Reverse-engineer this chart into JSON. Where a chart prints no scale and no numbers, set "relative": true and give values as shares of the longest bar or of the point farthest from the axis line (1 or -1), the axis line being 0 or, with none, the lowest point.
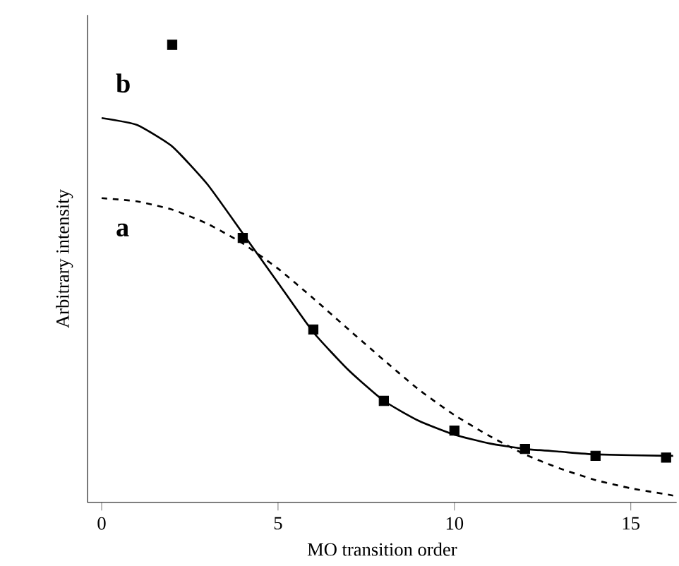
{
  "chart_data": {
    "type": "line",
    "xlabel": "MO transition order",
    "ylabel": "Arbitrary intensity",
    "relative": true,
    "xlim": [
      -0.4,
      16.3
    ],
    "xticks": [
      0,
      5,
      10,
      15
    ],
    "tick_labels": "x",
    "grid": false,
    "series": [
      {
        "name": "b",
        "color": "#000000",
        "line_style": "solid",
        "marker": "none",
        "x": [
          0,
          1,
          2,
          3,
          4,
          5,
          6,
          7,
          8,
          9,
          10,
          11,
          12,
          13,
          14,
          16,
          16.2
        ],
        "values": [
          0.84,
          0.825,
          0.778,
          0.695,
          0.588,
          0.48,
          0.372,
          0.289,
          0.222,
          0.178,
          0.148,
          0.129,
          0.117,
          0.111,
          0.105,
          0.102,
          0.102
        ]
      },
      {
        "name": "a",
        "color": "#000000",
        "line_style": "dashed",
        "marker": "none",
        "x": [
          0,
          1,
          2,
          3,
          4,
          5,
          6,
          7,
          8,
          9,
          10,
          11,
          12,
          13,
          14,
          15,
          16,
          16.2
        ],
        "values": [
          0.665,
          0.658,
          0.64,
          0.609,
          0.566,
          0.511,
          0.446,
          0.378,
          0.311,
          0.246,
          0.191,
          0.145,
          0.105,
          0.074,
          0.049,
          0.031,
          0.018,
          0.015
        ]
      },
      {
        "type": "scatter",
        "color": "#000000",
        "marker": "square",
        "x": [
          2,
          4,
          6,
          8,
          10,
          12,
          14,
          16
        ],
        "values": [
          1.0,
          0.578,
          0.378,
          0.222,
          0.157,
          0.117,
          0.102,
          0.098
        ]
      }
    ]
  }
}
